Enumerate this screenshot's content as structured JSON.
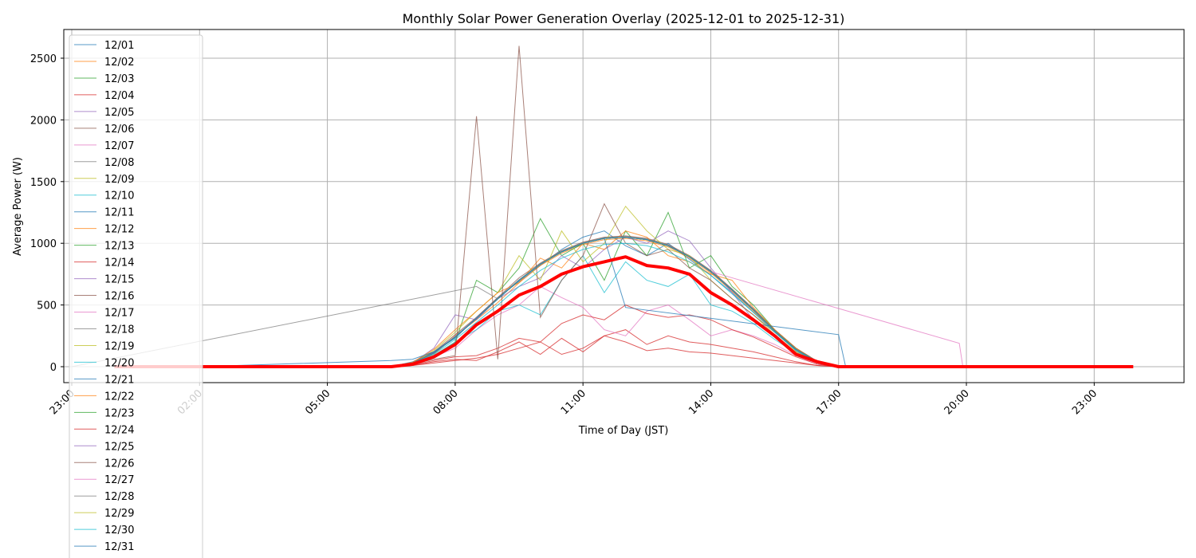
{
  "chart_data": {
    "type": "line",
    "title": "Monthly Solar Power Generation Overlay (2025-12-01 to 2025-12-31)",
    "xlabel": "Time of Day (JST)",
    "ylabel": "Average Power (W)",
    "xlim": [
      "22:46",
      "25:19"
    ],
    "ylim": [
      -129,
      2732
    ],
    "grid": true,
    "legend_placement": "upper-left",
    "x_ticks": [
      "23:00",
      "02:00",
      "05:00",
      "08:00",
      "11:00",
      "14:00",
      "17:00",
      "20:00",
      "23:00"
    ],
    "y_ticks": [
      0,
      500,
      1000,
      1500,
      2000,
      2500
    ],
    "times": [
      "06:30",
      "07:00",
      "07:30",
      "08:00",
      "08:30",
      "09:00",
      "09:30",
      "10:00",
      "10:30",
      "11:00",
      "11:30",
      "12:00",
      "12:30",
      "13:00",
      "13:30",
      "14:00",
      "14:30",
      "15:00",
      "15:30",
      "16:00",
      "16:30",
      "17:00"
    ],
    "series": [
      {
        "name": "12/01",
        "color": "#1f77b4",
        "values": [
          0,
          40,
          120,
          230,
          400,
          560,
          690,
          820,
          950,
          1050,
          1100,
          980,
          900,
          1000,
          870,
          740,
          600,
          440,
          300,
          150,
          40,
          0
        ]
      },
      {
        "name": "12/02",
        "color": "#ff7f0e",
        "values": [
          0,
          30,
          100,
          250,
          380,
          520,
          680,
          820,
          920,
          990,
          1030,
          1040,
          1020,
          970,
          880,
          760,
          610,
          450,
          280,
          130,
          35,
          0
        ]
      },
      {
        "name": "12/03",
        "color": "#2ca02c",
        "values": [
          0,
          20,
          90,
          200,
          700,
          600,
          800,
          1200,
          900,
          1000,
          700,
          1100,
          900,
          1250,
          800,
          900,
          650,
          500,
          300,
          150,
          40,
          0
        ]
      },
      {
        "name": "12/04",
        "color": "#d62728",
        "values": [
          0,
          10,
          40,
          60,
          50,
          120,
          200,
          100,
          230,
          120,
          250,
          300,
          180,
          250,
          200,
          180,
          150,
          120,
          80,
          40,
          10,
          0
        ]
      },
      {
        "name": "12/05",
        "color": "#9467bd",
        "values": [
          0,
          30,
          150,
          420,
          380,
          550,
          650,
          720,
          900,
          800,
          950,
          1050,
          1000,
          1100,
          1020,
          800,
          600,
          380,
          250,
          120,
          30,
          0
        ]
      },
      {
        "name": "12/06",
        "color": "#8c564b",
        "values": [
          0,
          35,
          120,
          260,
          400,
          560,
          720,
          840,
          940,
          1010,
          1050,
          1060,
          1040,
          990,
          900,
          780,
          630,
          470,
          300,
          150,
          45,
          0
        ]
      },
      {
        "name": "12/07",
        "color": "#e377c2",
        "values": [
          0,
          20,
          80,
          150,
          300,
          420,
          500,
          650,
          560,
          480,
          300,
          250,
          450,
          500,
          380,
          250,
          300,
          250,
          180,
          90,
          20,
          0
        ]
      },
      {
        "name": "12/08",
        "color": "#7f7f7f",
        "values": [
          0,
          30,
          115,
          245,
          395,
          555,
          705,
          835,
          935,
          1005,
          1045,
          1055,
          1035,
          985,
          895,
          775,
          625,
          465,
          295,
          145,
          40,
          0
        ]
      },
      {
        "name": "12/09",
        "color": "#bcbd22",
        "values": [
          0,
          25,
          130,
          280,
          450,
          600,
          900,
          700,
          1100,
          850,
          1000,
          1300,
          1100,
          950,
          900,
          700,
          550,
          420,
          260,
          120,
          30,
          0
        ]
      },
      {
        "name": "12/10",
        "color": "#17becf",
        "values": [
          0,
          25,
          90,
          200,
          300,
          450,
          500,
          420,
          700,
          900,
          600,
          850,
          700,
          650,
          750,
          500,
          450,
          350,
          220,
          110,
          30,
          0
        ]
      },
      {
        "name": "12/11",
        "color": "#1f77b4",
        "values": [
          0,
          30,
          110,
          240,
          390,
          550,
          700,
          830,
          930,
          1000,
          1040,
          1050,
          1030,
          980,
          890,
          770,
          620,
          460,
          290,
          140,
          40,
          0
        ]
      },
      {
        "name": "12/12",
        "color": "#ff7f0e",
        "values": [
          0,
          35,
          140,
          300,
          450,
          600,
          680,
          880,
          800,
          1000,
          950,
          1100,
          1050,
          900,
          850,
          750,
          700,
          480,
          300,
          150,
          40,
          0
        ]
      },
      {
        "name": "12/13",
        "color": "#2ca02c",
        "values": [
          0,
          30,
          110,
          240,
          390,
          550,
          700,
          830,
          930,
          1000,
          1040,
          1050,
          1030,
          980,
          890,
          770,
          620,
          460,
          290,
          140,
          40,
          0
        ]
      },
      {
        "name": "12/14",
        "color": "#d62728",
        "values": [
          0,
          15,
          50,
          80,
          90,
          150,
          230,
          200,
          350,
          420,
          380,
          500,
          430,
          400,
          420,
          380,
          300,
          240,
          160,
          80,
          20,
          0
        ]
      },
      {
        "name": "12/15",
        "color": "#9467bd",
        "values": [
          0,
          30,
          115,
          245,
          395,
          550,
          700,
          830,
          930,
          1000,
          1040,
          1050,
          1030,
          980,
          890,
          770,
          620,
          460,
          290,
          140,
          40,
          0
        ]
      },
      {
        "name": "12/16",
        "color": "#8c564b",
        "values": [
          0,
          20,
          60,
          90,
          2030,
          60,
          2600,
          400,
          700,
          900,
          1320,
          1000,
          900,
          950,
          800,
          700,
          550,
          420,
          280,
          130,
          30,
          0
        ]
      },
      {
        "name": "12/17",
        "color": "#e377c2",
        "values": [
          0,
          30,
          110,
          240,
          390,
          550,
          700,
          830,
          930,
          1000,
          1040,
          1050,
          1030,
          980,
          890,
          770,
          620,
          460,
          290,
          140,
          40,
          0
        ]
      },
      {
        "name": "12/18",
        "color": "#7f7f7f",
        "values": [
          0,
          30,
          110,
          240,
          390,
          550,
          700,
          830,
          930,
          1000,
          1040,
          1050,
          1030,
          980,
          890,
          770,
          620,
          460,
          290,
          140,
          40,
          0
        ]
      },
      {
        "name": "12/19",
        "color": "#bcbd22",
        "values": [
          0,
          30,
          110,
          240,
          390,
          550,
          700,
          830,
          930,
          1000,
          1040,
          1050,
          1030,
          980,
          890,
          770,
          620,
          460,
          290,
          140,
          40,
          0
        ]
      },
      {
        "name": "12/20",
        "color": "#17becf",
        "values": [
          0,
          25,
          100,
          220,
          360,
          500,
          650,
          780,
          880,
          950,
          990,
          1000,
          980,
          930,
          850,
          740,
          590,
          440,
          280,
          130,
          35,
          0
        ]
      },
      {
        "name": "12/21",
        "color": "#1f77b4",
        "lead": [
          [
            "02:00",
            0
          ]
        ],
        "values": [
          50,
          60,
          120,
          240,
          390,
          550,
          700,
          830,
          930,
          1000,
          1040,
          480,
          null,
          null,
          null,
          null,
          null,
          null,
          null,
          null,
          null,
          null
        ],
        "tail": [
          [
            "17:00",
            260
          ],
          [
            "17:10",
            0
          ],
          [
            "23:55",
            0
          ]
        ]
      },
      {
        "name": "12/22",
        "color": "#ff7f0e",
        "values": [
          0,
          30,
          110,
          240,
          390,
          550,
          700,
          830,
          930,
          1000,
          1040,
          1050,
          1030,
          980,
          890,
          770,
          620,
          460,
          290,
          140,
          40,
          0
        ]
      },
      {
        "name": "12/23",
        "color": "#2ca02c",
        "values": [
          0,
          30,
          110,
          240,
          390,
          550,
          700,
          830,
          930,
          1000,
          1040,
          1050,
          1030,
          980,
          890,
          770,
          620,
          460,
          290,
          140,
          40,
          0
        ]
      },
      {
        "name": "12/24",
        "color": "#d62728",
        "values": [
          0,
          10,
          30,
          50,
          70,
          100,
          150,
          200,
          100,
          150,
          250,
          200,
          130,
          150,
          120,
          110,
          90,
          70,
          50,
          30,
          10,
          0
        ]
      },
      {
        "name": "12/25",
        "color": "#9467bd",
        "values": [
          0,
          30,
          110,
          240,
          390,
          550,
          700,
          830,
          930,
          1000,
          1040,
          1050,
          1030,
          980,
          890,
          770,
          620,
          460,
          290,
          140,
          40,
          0
        ]
      },
      {
        "name": "12/26",
        "color": "#8c564b",
        "values": [
          0,
          30,
          110,
          240,
          390,
          550,
          700,
          830,
          930,
          1000,
          1040,
          1050,
          1030,
          980,
          890,
          770,
          620,
          460,
          290,
          140,
          40,
          0
        ]
      },
      {
        "name": "12/27",
        "color": "#e377c2",
        "values": [
          0,
          30,
          110,
          240,
          390,
          550,
          700,
          830,
          930,
          1000,
          1040,
          1050,
          1030,
          980,
          890,
          770,
          null,
          null,
          null,
          null,
          null,
          null
        ],
        "tail": [
          [
            "19:50",
            190
          ],
          [
            "19:55",
            0
          ],
          [
            "23:55",
            0
          ]
        ]
      },
      {
        "name": "12/28",
        "color": "#7f7f7f",
        "lead": [
          [
            "23:00",
            0
          ]
        ],
        "values": [
          null,
          null,
          null,
          null,
          650,
          550,
          700,
          830,
          930,
          1000,
          1040,
          1050,
          1030,
          980,
          890,
          770,
          620,
          460,
          290,
          140,
          40,
          0
        ]
      },
      {
        "name": "12/29",
        "color": "#bcbd22",
        "values": [
          0,
          30,
          110,
          240,
          390,
          550,
          700,
          830,
          930,
          1000,
          1040,
          1050,
          1030,
          980,
          890,
          770,
          620,
          460,
          290,
          140,
          40,
          0
        ]
      },
      {
        "name": "12/30",
        "color": "#17becf",
        "values": [
          0,
          30,
          110,
          240,
          390,
          550,
          700,
          830,
          930,
          1000,
          1040,
          1050,
          1030,
          980,
          890,
          770,
          620,
          460,
          290,
          140,
          40,
          0
        ]
      },
      {
        "name": "12/31",
        "color": "#1f77b4",
        "values": [
          0,
          30,
          110,
          240,
          390,
          550,
          700,
          830,
          930,
          1000,
          1040,
          1050,
          1030,
          980,
          890,
          770,
          620,
          460,
          290,
          140,
          40,
          0
        ]
      }
    ],
    "average": {
      "color": "#ff0000",
      "lead": [
        [
          "00:00",
          0
        ],
        [
          "06:00",
          0
        ]
      ],
      "values": [
        0,
        20,
        80,
        180,
        340,
        450,
        580,
        650,
        750,
        810,
        850,
        890,
        820,
        800,
        750,
        600,
        500,
        380,
        250,
        100,
        40,
        0
      ],
      "tail": [
        [
          "17:30",
          0
        ],
        [
          "23:55",
          0
        ]
      ]
    }
  }
}
